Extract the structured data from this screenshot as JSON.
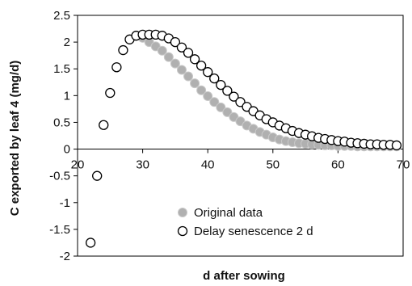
{
  "chart_data": {
    "type": "scatter",
    "title": "",
    "xlabel": "d after sowing",
    "ylabel": "C exported by leaf 4 (mg/d)",
    "xlim": [
      20,
      70
    ],
    "ylim": [
      -2,
      2.5
    ],
    "x_ticks": [
      "20",
      "30",
      "40",
      "50",
      "60",
      "70"
    ],
    "y_ticks": [
      "2.5",
      "2",
      "1.5",
      "1",
      "0.5",
      "0",
      "-0.5",
      "-1",
      "-1.5",
      "-2"
    ],
    "grid": false,
    "legend_position": "bottom-right",
    "series": [
      {
        "name": "Original data",
        "color": "#b0b0b0",
        "marker": "filled-circle",
        "x": [
          22,
          23,
          24,
          25,
          26,
          27,
          28,
          29,
          30,
          31,
          32,
          33,
          34,
          35,
          36,
          37,
          38,
          39,
          40,
          41,
          42,
          43,
          44,
          45,
          46,
          47,
          48,
          49,
          50,
          51,
          52,
          53,
          54,
          55,
          56,
          57,
          58,
          59,
          60,
          61,
          62,
          63,
          64,
          65,
          66,
          67,
          68,
          69
        ],
        "y": [
          -1.75,
          -0.5,
          0.45,
          1.05,
          1.53,
          1.85,
          2.05,
          2.12,
          2.08,
          2.0,
          1.92,
          1.84,
          1.72,
          1.6,
          1.48,
          1.36,
          1.23,
          1.1,
          0.99,
          0.88,
          0.78,
          0.69,
          0.6,
          0.52,
          0.44,
          0.38,
          0.32,
          0.27,
          0.22,
          0.18,
          0.15,
          0.13,
          0.11,
          0.1,
          0.09,
          0.08,
          0.07,
          0.07,
          0.06,
          0.06,
          0.06,
          0.05,
          0.05,
          0.05,
          0.05,
          0.05,
          0.05,
          0.05
        ]
      },
      {
        "name": "Delay senescence 2 d",
        "color": "#ffffff",
        "marker": "open-circle",
        "x": [
          22,
          23,
          24,
          25,
          26,
          27,
          28,
          29,
          30,
          31,
          32,
          33,
          34,
          35,
          36,
          37,
          38,
          39,
          40,
          41,
          42,
          43,
          44,
          45,
          46,
          47,
          48,
          49,
          50,
          51,
          52,
          53,
          54,
          55,
          56,
          57,
          58,
          59,
          60,
          61,
          62,
          63,
          64,
          65,
          66,
          67,
          68,
          69
        ],
        "y": [
          -1.75,
          -0.5,
          0.45,
          1.05,
          1.53,
          1.85,
          2.05,
          2.12,
          2.14,
          2.14,
          2.14,
          2.12,
          2.07,
          2.0,
          1.9,
          1.8,
          1.68,
          1.56,
          1.44,
          1.32,
          1.2,
          1.09,
          0.98,
          0.88,
          0.79,
          0.71,
          0.63,
          0.56,
          0.5,
          0.44,
          0.39,
          0.34,
          0.3,
          0.27,
          0.24,
          0.21,
          0.19,
          0.17,
          0.15,
          0.14,
          0.12,
          0.11,
          0.1,
          0.09,
          0.09,
          0.08,
          0.08,
          0.07
        ]
      }
    ]
  }
}
